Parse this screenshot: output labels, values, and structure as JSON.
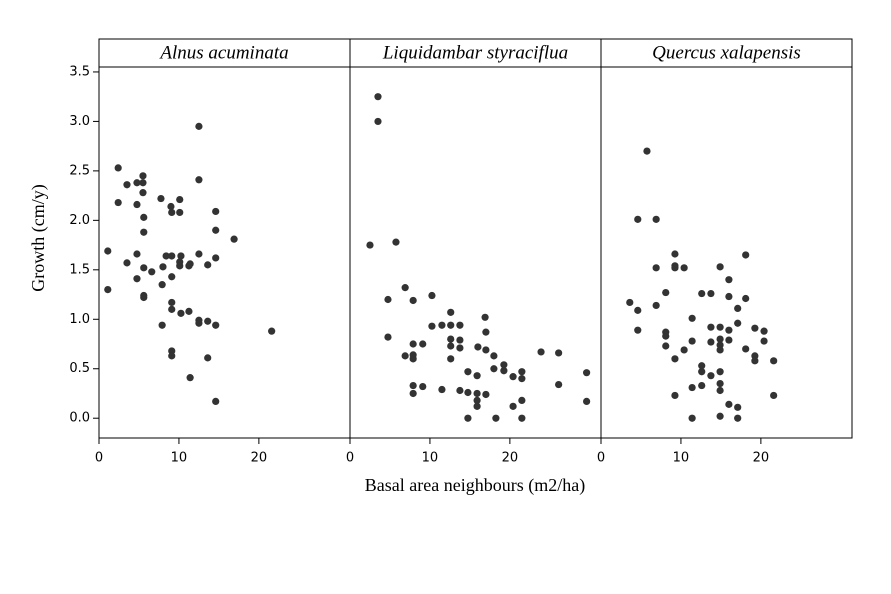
{
  "chart_data": {
    "type": "scatter",
    "xlabel": "Basal area neighbours (m2/ha)",
    "ylabel": "Growth (cm/y)",
    "color": "#333333",
    "xlim": [
      0,
      31.4
    ],
    "xticks": [
      0,
      10,
      20
    ],
    "ylim": [
      -0.2,
      3.55
    ],
    "yticks": [
      {
        "value": 0,
        "label": "0.0"
      },
      0.5,
      {
        "value": 1,
        "label": "1.0"
      },
      1.5,
      {
        "value": 2,
        "label": "2.0"
      },
      2.5,
      {
        "value": 3,
        "label": "3.0"
      },
      3.5
    ],
    "series": [
      {
        "name": "Alnus acuminata",
        "x": [
          1.1,
          1.1,
          2.4,
          2.4,
          3.5,
          3.5,
          4.75,
          4.75,
          4.75,
          4.75,
          5.5,
          5.5,
          5.5,
          5.6,
          5.6,
          5.6,
          5.6,
          5.6,
          6.6,
          7.75,
          8,
          7.9,
          7.9,
          8.4,
          9,
          9.1,
          9.1,
          9.1,
          9.1,
          9.1,
          9.1,
          9.1,
          10.1,
          10.1,
          10.1,
          10.1,
          10.25,
          10.25,
          11.25,
          11.25,
          11.4,
          11.4,
          12.5,
          12.5,
          12.5,
          12.5,
          12.5,
          13.6,
          13.6,
          13.6,
          14.6,
          14.6,
          14.6,
          14.6,
          14.6,
          16.9,
          21.6
        ],
        "values": [
          1.69,
          1.3,
          2.53,
          2.18,
          2.36,
          1.57,
          2.38,
          2.16,
          1.66,
          1.41,
          2.45,
          2.38,
          2.28,
          2.03,
          1.88,
          1.52,
          1.22,
          1.24,
          1.48,
          2.22,
          1.53,
          1.35,
          0.94,
          1.64,
          2.14,
          2.08,
          1.43,
          1.17,
          1.1,
          0.68,
          0.63,
          1.64,
          2.21,
          2.08,
          1.58,
          1.54,
          1.64,
          1.06,
          1.54,
          1.08,
          1.56,
          0.41,
          2.95,
          2.41,
          1.66,
          0.99,
          0.96,
          1.55,
          0.98,
          0.61,
          2.09,
          1.9,
          1.62,
          0.94,
          0.17,
          1.81,
          0.88
        ]
      },
      {
        "name": "Liquidambar styraciflua",
        "x": [
          2.5,
          3.5,
          3.5,
          4.75,
          4.75,
          5.75,
          6.9,
          6.9,
          7.9,
          7.9,
          7.9,
          7.9,
          7.9,
          7.9,
          9.1,
          9.1,
          10.25,
          10.25,
          11.5,
          11.5,
          12.6,
          12.6,
          12.6,
          12.6,
          12.6,
          13.75,
          13.75,
          13.75,
          13.75,
          14.75,
          14.75,
          14.75,
          15.9,
          15.9,
          15.9,
          15.9,
          16,
          16.9,
          17,
          17,
          17,
          18,
          18,
          18.25,
          19.25,
          19.25,
          20.4,
          20.4,
          21.5,
          21.5,
          21.5,
          21.5,
          23.9,
          26.1,
          26.1,
          29.6,
          29.6
        ],
        "values": [
          1.75,
          3.25,
          3.0,
          1.2,
          0.82,
          1.78,
          1.32,
          0.63,
          1.19,
          0.75,
          0.64,
          0.6,
          0.33,
          0.25,
          0.75,
          0.32,
          1.24,
          0.93,
          0.94,
          0.29,
          1.07,
          0.94,
          0.8,
          0.73,
          0.6,
          0.94,
          0.79,
          0.71,
          0.28,
          0.47,
          0.26,
          0.0,
          0.43,
          0.25,
          0.18,
          0.12,
          0.72,
          1.02,
          0.87,
          0.69,
          0.24,
          0.63,
          0.5,
          0.0,
          0.54,
          0.48,
          0.42,
          0.12,
          0.47,
          0.4,
          0.18,
          0.0,
          0.67,
          0.66,
          0.34,
          0.46,
          0.17
        ]
      },
      {
        "name": "Quercus xalapensis",
        "x": [
          3.6,
          4.6,
          4.6,
          4.6,
          5.75,
          6.9,
          6.9,
          6.9,
          8.1,
          8.1,
          8.1,
          8.1,
          9.25,
          9.25,
          9.25,
          9.25,
          9.25,
          10.4,
          10.4,
          11.4,
          11.4,
          11.4,
          11.4,
          12.6,
          12.6,
          12.6,
          12.6,
          13.75,
          13.75,
          13.75,
          13.75,
          14.9,
          14.9,
          14.9,
          14.9,
          14.9,
          14.9,
          14.9,
          14.9,
          14.9,
          16,
          16,
          16,
          16,
          16,
          17.1,
          17.1,
          17.1,
          17.1,
          18.1,
          18.1,
          18.1,
          19.25,
          19.25,
          19.25,
          20.4,
          20.4,
          21.6,
          21.6
        ],
        "values": [
          1.17,
          2.01,
          1.09,
          0.89,
          2.7,
          2.01,
          1.52,
          1.14,
          1.27,
          0.87,
          0.83,
          0.73,
          1.66,
          1.54,
          1.52,
          0.6,
          0.23,
          1.52,
          0.69,
          1.01,
          0.78,
          0.31,
          0.0,
          1.26,
          0.53,
          0.47,
          0.33,
          1.26,
          0.92,
          0.77,
          0.43,
          1.53,
          0.92,
          0.8,
          0.74,
          0.69,
          0.47,
          0.35,
          0.28,
          0.02,
          1.23,
          1.4,
          0.89,
          0.79,
          0.14,
          1.11,
          0.96,
          0.11,
          0.0,
          1.65,
          1.21,
          0.7,
          0.91,
          0.63,
          0.58,
          0.88,
          0.78,
          0.58,
          0.23
        ]
      }
    ]
  }
}
